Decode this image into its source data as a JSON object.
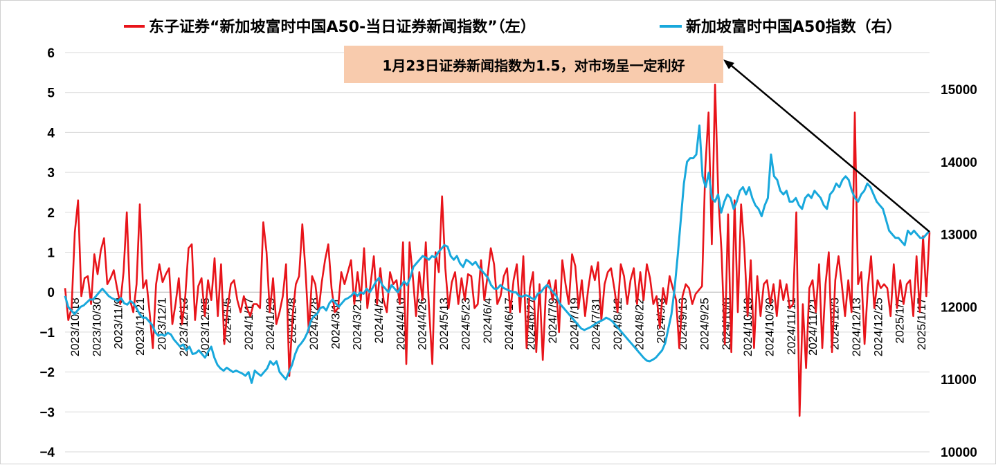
{
  "chart_data": {
    "type": "line",
    "legend": {
      "placement": "top",
      "entries": [
        {
          "name": "东子证券“新加坡富时中国A50-当日证券新闻指数”（左）",
          "color": "#e8141a"
        },
        {
          "name": "新加坡富时中国A50指数（右）",
          "color": "#18a8dc"
        }
      ]
    },
    "annotation": "1月23日证券新闻指数为1.5，对市场呈一定利好",
    "y_left": {
      "min": -4,
      "max": 6,
      "ticks": [
        "−4",
        "−3",
        "−2",
        "−1",
        "0",
        "1",
        "2",
        "3",
        "4",
        "5",
        "6"
      ]
    },
    "y_right": {
      "min": 10000,
      "max": 15000,
      "ticks": [
        "10000",
        "11000",
        "12000",
        "13000",
        "14000",
        "15000"
      ]
    },
    "x_tick_labels": [
      "2023/10/18",
      "2023/10/30",
      "2023/11/9",
      "2023/11/21",
      "2023/12/1",
      "2023/12/13",
      "2023/12/25",
      "2024/1/5",
      "2024/1/17",
      "2024/1/29",
      "2024/2/8",
      "2024/2/28",
      "2024/3/11",
      "2024/3/21",
      "2024/4/2",
      "2024/4/16",
      "2024/4/26",
      "2024/5/13",
      "2024/5/23",
      "2024/6/4",
      "2024/6/17",
      "2024/6/27",
      "2024/7/9",
      "2024/7/19",
      "2024/7/31",
      "2024/8/12",
      "2024/8/22",
      "2024/9/3",
      "2024/9/13",
      "2024/9/25",
      "2024/10/8",
      "2024/10/18",
      "2024/10/30",
      "2024/11/11",
      "2024/11/21",
      "2024/12/3",
      "2024/12/13",
      "2024/12/25",
      "2025/1/7",
      "2025/1/17"
    ],
    "grid": "horizontal",
    "series": [
      {
        "name": "东子证券“新加坡富时中国A50-当日证券新闻指数”（左）",
        "axis": "left",
        "color": "#e8141a",
        "values": [
          0.1,
          -0.7,
          -0.4,
          1.5,
          2.3,
          -0.1,
          0.35,
          0.4,
          -0.3,
          0.95,
          0.45,
          1.05,
          1.35,
          0.2,
          0.35,
          0.55,
          0.1,
          -0.3,
          0.5,
          2.0,
          -0.2,
          -0.5,
          0.2,
          2.2,
          0.1,
          0.3,
          -0.5,
          -1.4,
          0.2,
          0.7,
          0.25,
          0.45,
          0.6,
          -0.8,
          -0.3,
          0.35,
          -0.8,
          -0.1,
          1.1,
          1.2,
          -0.7,
          0.15,
          0.35,
          -0.6,
          0.3,
          -0.2,
          0.85,
          -0.6,
          0.7,
          -1.3,
          -0.4,
          0.2,
          0.3,
          -0.2,
          -0.5,
          -0.1,
          -0.4,
          -0.6,
          -0.3,
          -0.3,
          -0.4,
          1.75,
          1.0,
          -0.5,
          0.35,
          -0.8,
          -0.5,
          -0.1,
          0.7,
          -2.1,
          -0.6,
          0.2,
          0.4,
          1.7,
          0.5,
          -1.0,
          0.4,
          0.2,
          -0.5,
          0.25,
          0.8,
          1.2,
          0.1,
          -0.5,
          -0.4,
          0.5,
          0.2,
          0.5,
          0.8,
          -0.3,
          0.5,
          -0.2,
          1.1,
          -0.4,
          0.2,
          0.9,
          -0.3,
          0.6,
          -0.2,
          -0.5,
          0.5,
          0.2,
          0.3,
          -0.3,
          1.25,
          -1.8,
          1.25,
          0.4,
          -0.6,
          0.5,
          -0.2,
          1.25,
          -0.4,
          -1.8,
          1.0,
          0.5,
          2.4,
          0.6,
          -0.4,
          0.25,
          0.5,
          -0.3,
          0.35,
          -0.2,
          0.45,
          0.4,
          -0.4,
          -0.3,
          0.8,
          -0.2,
          0.4,
          1.1,
          0.7,
          -0.3,
          -0.1,
          0.4,
          0.6,
          -0.5,
          0.3,
          0.7,
          -0.5,
          0.9,
          -1.4,
          0.1,
          0.5,
          -1.5,
          0.2,
          -1.7,
          0.1,
          0.3,
          -0.2,
          0.3,
          -1.0,
          0.8,
          0.2,
          -0.3,
          0.95,
          0.65,
          -0.4,
          0.3,
          -0.6,
          0.1,
          0.65,
          0.3,
          0.75,
          -0.7,
          0.2,
          0.5,
          0.6,
          0.1,
          -0.5,
          0.7,
          0.4,
          -0.3,
          0.3,
          0.6,
          -0.3,
          0.5,
          -0.2,
          0.7,
          0.35,
          -0.3,
          -0.1,
          -0.9,
          0.1,
          -0.3,
          0.4,
          0.1,
          -0.2,
          -1.4,
          -0.1,
          0.2,
          0.1,
          -0.3,
          -0.05,
          0.05,
          0.15,
          3.1,
          4.5,
          1.2,
          5.2,
          2.4,
          1.0,
          -1.3,
          1.95,
          -1.5,
          2.3,
          -0.5,
          2.2,
          1.1,
          -0.6,
          0.8,
          -1.4,
          0.4,
          -0.6,
          0.2,
          0.3,
          -0.3,
          0.2,
          -0.6,
          0.3,
          -0.2,
          0.2,
          -0.4,
          -0.3,
          2.0,
          -3.1,
          -0.3,
          -1.9,
          0.1,
          0.3,
          -0.5,
          0.7,
          -1.4,
          0.2,
          1.0,
          -1.5,
          0.3,
          0.9,
          0.2,
          -0.6,
          0.3,
          -0.5,
          4.5,
          0.2,
          0.5,
          -1.3,
          0.1,
          0.9,
          -0.4,
          0.3,
          0.1,
          0.2,
          0.1,
          -0.6,
          0.7,
          -0.4,
          0.3,
          -0.3,
          0.2,
          0.3,
          -0.6,
          0.9,
          -0.5,
          1.4,
          -0.1,
          1.5
        ]
      },
      {
        "name": "新加坡富时中国A50指数（右）",
        "axis": "right",
        "color": "#18a8dc",
        "values": [
          12150,
          12000,
          11950,
          11900,
          11950,
          12000,
          12020,
          12060,
          12100,
          12100,
          12150,
          12200,
          12250,
          12200,
          12150,
          12120,
          12100,
          12080,
          12120,
          12050,
          12030,
          12080,
          12050,
          11980,
          11900,
          11850,
          11850,
          11800,
          11750,
          11650,
          11600,
          11620,
          11600,
          11640,
          11620,
          11550,
          11500,
          11450,
          11480,
          11400,
          11450,
          11350,
          11360,
          11400,
          11350,
          11300,
          11380,
          11450,
          11300,
          11200,
          11150,
          11120,
          11160,
          11130,
          11100,
          11120,
          11100,
          11080,
          11050,
          11100,
          10950,
          11120,
          11080,
          11050,
          11100,
          11150,
          11250,
          11200,
          11250,
          11100,
          11050,
          11000,
          11100,
          11200,
          11350,
          11450,
          11500,
          11560,
          11650,
          11800,
          11870,
          11900,
          11980,
          12000,
          11950,
          12050,
          12100,
          12050,
          12000,
          12050,
          12100,
          12120,
          12150,
          12200,
          12150,
          12200,
          12180,
          12250,
          12200,
          12270,
          12350,
          12400,
          12300,
          12250,
          12200,
          12300,
          12250,
          12200,
          12280,
          12350,
          12300,
          12400,
          12550,
          12600,
          12650,
          12700,
          12680,
          12650,
          12700,
          12680,
          12750,
          12800,
          12850,
          12830,
          12700,
          12650,
          12700,
          12600,
          12550,
          12650,
          12620,
          12580,
          12620,
          12550,
          12500,
          12450,
          12400,
          12300,
          12250,
          12250,
          12300,
          12260,
          12240,
          12220,
          12200,
          12200,
          12150,
          12140,
          12160,
          12150,
          12120,
          12100,
          12180,
          12200,
          12260,
          12300,
          12250,
          12200,
          12150,
          12050,
          12000,
          11950,
          11900,
          11850,
          11800,
          11750,
          11700,
          11680,
          11700,
          11720,
          11750,
          11780,
          11800,
          11820,
          11850,
          11830,
          11800,
          11750,
          11700,
          11650,
          11600,
          11550,
          11500,
          11450,
          11400,
          11350,
          11300,
          11260,
          11250,
          11270,
          11300,
          11350,
          11400,
          11500,
          11700,
          11900,
          12250,
          12700,
          13200,
          13700,
          14000,
          14050,
          14050,
          14100,
          14500,
          13800,
          13650,
          13850,
          13500,
          13450,
          13550,
          13300,
          13450,
          13550,
          13500,
          13350,
          13450,
          13600,
          13650,
          13550,
          13650,
          13500,
          13400,
          13350,
          13250,
          13400,
          13500,
          14100,
          13800,
          13750,
          13600,
          13550,
          13600,
          13450,
          13450,
          13500,
          13400,
          13350,
          13500,
          13550,
          13500,
          13600,
          13550,
          13500,
          13400,
          13350,
          13550,
          13600,
          13700,
          13650,
          13750,
          13800,
          13750,
          13600,
          13500,
          13450,
          13550,
          13600,
          13700,
          13650,
          13550,
          13450,
          13400,
          13350,
          13200,
          13050,
          13000,
          12950,
          12950,
          12900,
          12850,
          13050,
          13000,
          13050,
          13000,
          12950,
          12950,
          13000,
          13050
        ]
      }
    ]
  }
}
